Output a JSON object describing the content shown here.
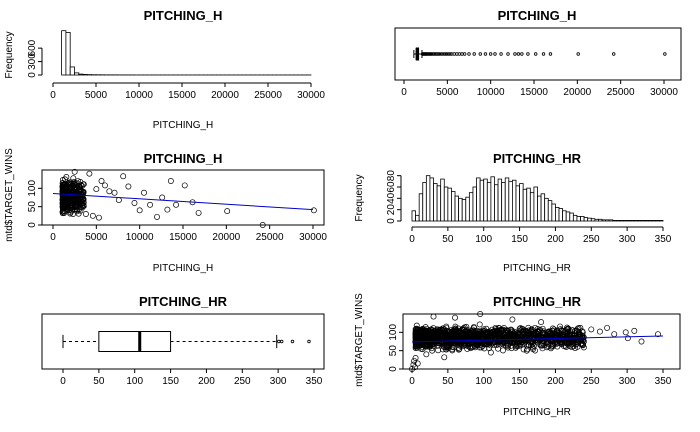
{
  "chart_data": [
    {
      "type": "histogram",
      "title": "PITCHING_H",
      "xlabel": "PITCHING_H",
      "ylabel": "Frequency",
      "xlim": [
        0,
        30000
      ],
      "ylim": [
        0,
        1050
      ],
      "xticks": [
        "0",
        "5000",
        "10000",
        "15000",
        "20000",
        "25000",
        "30000"
      ],
      "yticks": [
        "0",
        "300",
        "600"
      ],
      "bin_width": 500,
      "bins_start": 1000,
      "counts": [
        990,
        950,
        180,
        48,
        20,
        12,
        8,
        6,
        5,
        4,
        3,
        3,
        3,
        2,
        2,
        2,
        2,
        1,
        1,
        1,
        1,
        1,
        1,
        1,
        1,
        1,
        1,
        1,
        1,
        1,
        1,
        1,
        1,
        1,
        1,
        1,
        1,
        1,
        1,
        1,
        1,
        1,
        1,
        1,
        1,
        1,
        1,
        1,
        1,
        1,
        1,
        1,
        1,
        1,
        1,
        1,
        1,
        1
      ]
    },
    {
      "type": "boxplot",
      "title": "PITCHING_H",
      "xlim": [
        0,
        30000
      ],
      "xticks": [
        "0",
        "5000",
        "10000",
        "15000",
        "20000",
        "25000",
        "30000"
      ],
      "whisker_low": 1137,
      "q1": 1419,
      "median": 1518,
      "q3": 1682,
      "whisker_high": 2072,
      "outliers": [
        2150,
        2220,
        2300,
        2380,
        2450,
        2530,
        2600,
        2700,
        2800,
        2900,
        3000,
        3100,
        3200,
        3350,
        3500,
        3650,
        3800,
        3950,
        4100,
        4300,
        4500,
        4700,
        4900,
        5100,
        5300,
        5500,
        5800,
        6100,
        6400,
        6700,
        7000,
        7500,
        8100,
        8800,
        9400,
        10000,
        10500,
        11200,
        12000,
        12800,
        13200,
        13600,
        14300,
        15200,
        16100,
        16900,
        20100,
        24200,
        30100
      ]
    },
    {
      "type": "scatter",
      "title": "PITCHING_H",
      "xlabel": "PITCHING_H",
      "ylabel": "mtd$TARGET_WINS",
      "xlim": [
        0,
        30000
      ],
      "ylim": [
        0,
        150
      ],
      "xticks": [
        "0",
        "5000",
        "10000",
        "15000",
        "20000",
        "25000",
        "30000"
      ],
      "yticks": [
        "0",
        "50",
        "100"
      ],
      "points": [
        [
          4200,
          140
        ],
        [
          5000,
          98
        ],
        [
          5600,
          120
        ],
        [
          6000,
          108
        ],
        [
          6500,
          92
        ],
        [
          7100,
          88
        ],
        [
          7600,
          68
        ],
        [
          8100,
          133
        ],
        [
          8700,
          105
        ],
        [
          9400,
          60
        ],
        [
          10000,
          40
        ],
        [
          10500,
          88
        ],
        [
          11200,
          55
        ],
        [
          12000,
          22
        ],
        [
          12600,
          75
        ],
        [
          13200,
          42
        ],
        [
          13600,
          120
        ],
        [
          14200,
          55
        ],
        [
          15200,
          108
        ],
        [
          16100,
          62
        ],
        [
          16800,
          33
        ],
        [
          20100,
          38
        ],
        [
          24200,
          0
        ],
        [
          30100,
          40
        ],
        [
          2900,
          60
        ],
        [
          3400,
          48
        ],
        [
          3800,
          30
        ],
        [
          4600,
          25
        ],
        [
          5300,
          20
        ],
        [
          2500,
          145
        ]
      ],
      "dense_cluster": {
        "x_range": [
          1100,
          3600
        ],
        "y_range": [
          20,
          135
        ],
        "count": 340
      },
      "fit_line": {
        "x": [
          0,
          30000
        ],
        "y": [
          86,
          42
        ]
      },
      "fit_color": "#0000cc"
    },
    {
      "type": "histogram",
      "title": "PITCHING_HR",
      "xlabel": "PITCHING_HR",
      "ylabel": "Frequency",
      "xlim": [
        0,
        350
      ],
      "ylim": [
        0,
        90
      ],
      "xticks": [
        "0",
        "50",
        "100",
        "150",
        "200",
        "250",
        "300",
        "350"
      ],
      "yticks": [
        "0",
        "20",
        "40",
        "60",
        "80"
      ],
      "bin_width": 5,
      "bins_start": 0,
      "counts": [
        18,
        10,
        48,
        68,
        80,
        76,
        66,
        62,
        74,
        60,
        58,
        52,
        44,
        40,
        38,
        42,
        50,
        60,
        76,
        72,
        74,
        68,
        78,
        64,
        74,
        68,
        76,
        70,
        72,
        62,
        66,
        56,
        58,
        50,
        60,
        44,
        48,
        40,
        36,
        30,
        24,
        22,
        18,
        16,
        14,
        10,
        8,
        8,
        6,
        5,
        4,
        3,
        3,
        2,
        2,
        2,
        1,
        1,
        1,
        1,
        1,
        1,
        1,
        1,
        1,
        1,
        1,
        1,
        1,
        1
      ]
    },
    {
      "type": "boxplot",
      "title": "PITCHING_HR",
      "xlim": [
        0,
        350
      ],
      "xticks": [
        "0",
        "50",
        "100",
        "150",
        "200",
        "250",
        "300",
        "350"
      ],
      "whisker_low": 0,
      "q1": 50,
      "median": 107,
      "q3": 150,
      "whisker_high": 298,
      "outliers": [
        301,
        305,
        320,
        343
      ]
    },
    {
      "type": "scatter",
      "title": "PITCHING_HR",
      "xlabel": "PITCHING_HR",
      "ylabel": "mtd$TARGET_WINS",
      "xlim": [
        0,
        350
      ],
      "ylim": [
        0,
        150
      ],
      "xticks": [
        "0",
        "50",
        "100",
        "150",
        "200",
        "250",
        "300",
        "350"
      ],
      "yticks": [
        "0",
        "50",
        "100"
      ],
      "points": [
        [
          0,
          0
        ],
        [
          2,
          12
        ],
        [
          3,
          22
        ],
        [
          4,
          5
        ],
        [
          5,
          30
        ],
        [
          8,
          15
        ],
        [
          250,
          108
        ],
        [
          262,
          102
        ],
        [
          272,
          112
        ],
        [
          282,
          95
        ],
        [
          298,
          100
        ],
        [
          301,
          84
        ],
        [
          320,
          75
        ],
        [
          343,
          95
        ],
        [
          310,
          104
        ],
        [
          30,
          143
        ],
        [
          60,
          140
        ],
        [
          95,
          150
        ],
        [
          140,
          135
        ],
        [
          180,
          128
        ],
        [
          20,
          40
        ],
        [
          45,
          32
        ],
        [
          110,
          45
        ],
        [
          160,
          50
        ]
      ],
      "dense_cluster": {
        "x_range": [
          5,
          240
        ],
        "y_range": [
          45,
          125
        ],
        "count": 1400
      },
      "fit_line": {
        "x": [
          0,
          350
        ],
        "y": [
          74,
          90
        ]
      },
      "fit_color": "#0000cc"
    }
  ]
}
